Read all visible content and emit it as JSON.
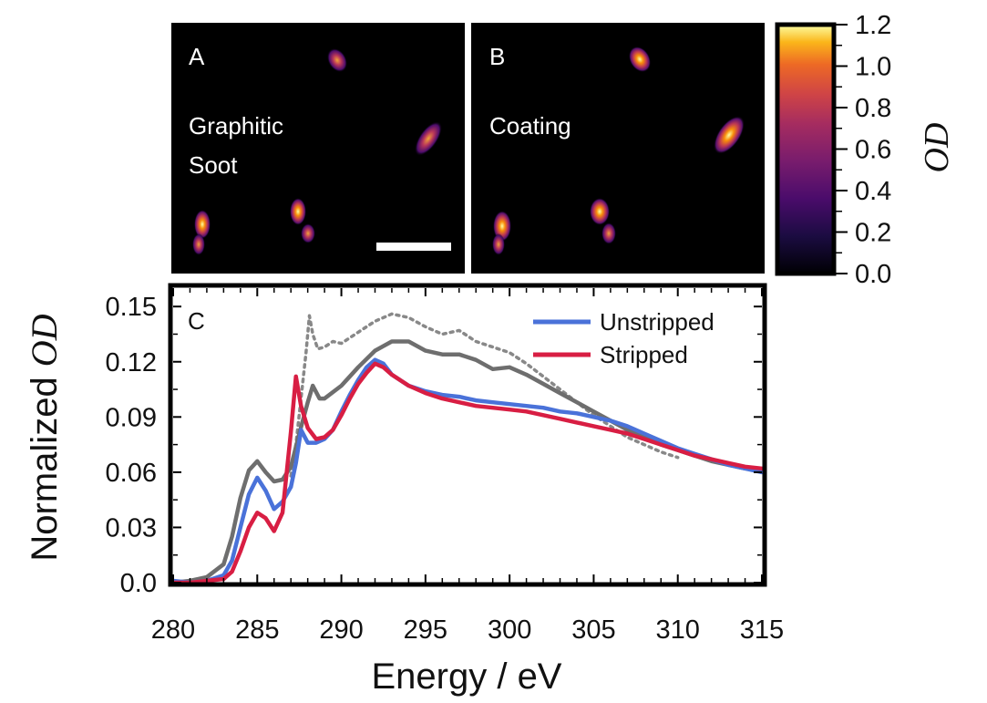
{
  "panels": {
    "a": {
      "letter": "A",
      "label_line1": "Graphitic",
      "label_line2": "Soot"
    },
    "b": {
      "letter": "B",
      "label": "Coating"
    }
  },
  "colorbar": {
    "label": "OD",
    "ticks": [
      "1.2",
      "1.0",
      "0.8",
      "0.6",
      "0.4",
      "0.2",
      "0.0"
    ],
    "range": [
      0.0,
      1.2
    ],
    "colormap": "inferno"
  },
  "chart_data": {
    "type": "line",
    "panel_letter": "C",
    "xlabel": "Energy / eV",
    "ylabel_prefix": "Normalized ",
    "ylabel_italic": "OD",
    "xlim": [
      280,
      315
    ],
    "ylim": [
      0.0,
      0.16
    ],
    "xticks": [
      "280",
      "285",
      "290",
      "295",
      "300",
      "305",
      "310",
      "315"
    ],
    "yticks": [
      "0.0",
      "0.03",
      "0.06",
      "0.09",
      "0.12",
      "0.15"
    ],
    "legend_position": "top-right",
    "colors": {
      "unstripped": "#4a72d9",
      "stripped": "#d81e43",
      "gray": "#6e6e6e",
      "gray_dotted": "#888888"
    },
    "series": [
      {
        "name": "Unstripped",
        "style": "solid",
        "color": "#4a72d9",
        "x": [
          280,
          281,
          282,
          283,
          283.5,
          284,
          284.5,
          285,
          285.5,
          286,
          286.5,
          287,
          287.3,
          287.6,
          288,
          288.5,
          289,
          289.5,
          290,
          290.5,
          291,
          291.5,
          292,
          292.5,
          293,
          294,
          295,
          296,
          297,
          298,
          299,
          300,
          301,
          302,
          303,
          304,
          305,
          306,
          307,
          308,
          309,
          310,
          311,
          312,
          313,
          314,
          315
        ],
        "y": [
          0.001,
          0.0,
          0.001,
          0.004,
          0.012,
          0.03,
          0.048,
          0.057,
          0.05,
          0.04,
          0.044,
          0.052,
          0.065,
          0.083,
          0.076,
          0.076,
          0.078,
          0.083,
          0.093,
          0.102,
          0.11,
          0.117,
          0.121,
          0.119,
          0.113,
          0.107,
          0.104,
          0.102,
          0.101,
          0.099,
          0.098,
          0.097,
          0.096,
          0.095,
          0.093,
          0.092,
          0.09,
          0.088,
          0.085,
          0.081,
          0.077,
          0.073,
          0.07,
          0.067,
          0.064,
          0.062,
          0.06
        ]
      },
      {
        "name": "Stripped",
        "style": "solid",
        "color": "#d81e43",
        "x": [
          280,
          281,
          282,
          283,
          283.5,
          284,
          284.5,
          285,
          285.5,
          286,
          286.5,
          287,
          287.3,
          287.6,
          288,
          288.5,
          289,
          289.5,
          290,
          290.5,
          291,
          291.5,
          292,
          292.5,
          293,
          294,
          295,
          296,
          297,
          298,
          299,
          300,
          301,
          302,
          303,
          304,
          305,
          306,
          307,
          308,
          309,
          310,
          311,
          312,
          313,
          314,
          315
        ],
        "y": [
          0.0,
          0.0,
          0.001,
          0.002,
          0.006,
          0.017,
          0.03,
          0.038,
          0.035,
          0.028,
          0.038,
          0.082,
          0.112,
          0.096,
          0.084,
          0.078,
          0.079,
          0.083,
          0.091,
          0.1,
          0.108,
          0.114,
          0.119,
          0.117,
          0.113,
          0.107,
          0.103,
          0.1,
          0.098,
          0.096,
          0.095,
          0.094,
          0.093,
          0.091,
          0.089,
          0.087,
          0.085,
          0.083,
          0.081,
          0.078,
          0.075,
          0.072,
          0.069,
          0.067,
          0.065,
          0.063,
          0.062
        ]
      },
      {
        "style": "solid",
        "color": "#6e6e6e",
        "x": [
          280,
          281,
          282,
          283,
          283.5,
          284,
          284.5,
          285,
          285.5,
          286,
          286.5,
          287,
          287.5,
          288,
          288.3,
          288.7,
          289,
          290,
          291,
          292,
          293,
          294,
          295,
          296,
          297,
          298,
          299,
          300,
          301,
          302,
          303,
          304,
          305,
          306,
          307,
          308,
          309,
          310,
          311,
          312,
          313,
          314,
          315
        ],
        "y": [
          0.0,
          0.001,
          0.003,
          0.01,
          0.025,
          0.046,
          0.061,
          0.066,
          0.06,
          0.055,
          0.056,
          0.063,
          0.081,
          0.098,
          0.107,
          0.1,
          0.1,
          0.107,
          0.117,
          0.126,
          0.131,
          0.131,
          0.126,
          0.124,
          0.124,
          0.121,
          0.116,
          0.117,
          0.113,
          0.108,
          0.103,
          0.098,
          0.093,
          0.088,
          0.083,
          0.079,
          0.075,
          0.072,
          0.069,
          0.066,
          0.064,
          0.062,
          0.061
        ]
      },
      {
        "style": "dotted",
        "color": "#888888",
        "x": [
          287,
          287.3,
          287.6,
          287.9,
          288.1,
          288.3,
          288.6,
          289,
          289.5,
          290,
          291,
          292,
          293,
          294,
          295,
          296,
          297,
          298,
          299,
          300,
          301,
          302,
          303,
          304,
          305,
          306,
          307,
          308,
          309,
          310
        ],
        "y": [
          0.058,
          0.075,
          0.1,
          0.125,
          0.145,
          0.135,
          0.127,
          0.128,
          0.131,
          0.13,
          0.136,
          0.142,
          0.146,
          0.144,
          0.139,
          0.135,
          0.137,
          0.131,
          0.128,
          0.125,
          0.119,
          0.112,
          0.105,
          0.098,
          0.091,
          0.085,
          0.079,
          0.075,
          0.071,
          0.068
        ]
      }
    ]
  }
}
